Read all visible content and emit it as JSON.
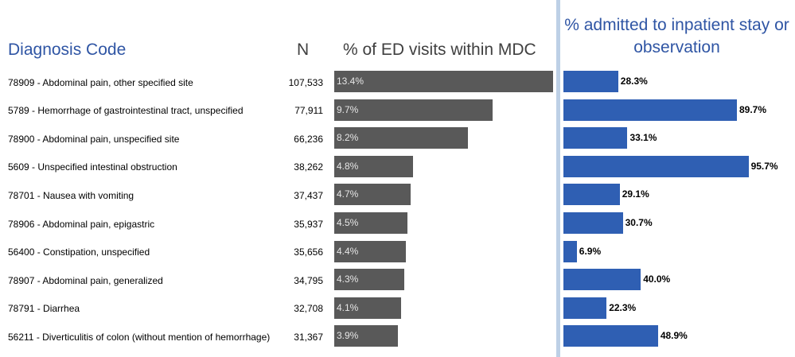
{
  "headers": {
    "code": "Diagnosis Code",
    "n": "N",
    "pct_visits": "% of ED visits within MDC",
    "pct_admitted": "% admitted to inpatient stay or observation"
  },
  "colors": {
    "header_blue": "#2f55a4",
    "visits_bar": "#595959",
    "admit_bar": "#2f5fb3",
    "divider": "#bdd0e6"
  },
  "chart_data": {
    "type": "bar",
    "orientation": "horizontal",
    "categories": [
      "78909 - Abdominal pain, other specified site",
      "5789 - Hemorrhage of gastrointestinal tract, unspecified",
      "78900 - Abdominal pain, unspecified site",
      "5609 - Unspecified intestinal obstruction",
      "78701 - Nausea with vomiting",
      "78906 - Abdominal pain, epigastric",
      "56400 - Constipation, unspecified",
      "78907 - Abdominal pain, generalized",
      "78791 - Diarrhea",
      "56211 - Diverticulitis of colon (without mention of hemorrhage)"
    ],
    "n": [
      "107,533",
      "77,911",
      "66,236",
      "38,262",
      "37,437",
      "35,937",
      "35,656",
      "34,795",
      "32,708",
      "31,367"
    ],
    "series": [
      {
        "name": "% of ED visits within MDC",
        "values": [
          13.4,
          9.7,
          8.2,
          4.8,
          4.7,
          4.5,
          4.4,
          4.3,
          4.1,
          3.9
        ],
        "labels": [
          "13.4%",
          "9.7%",
          "8.2%",
          "4.8%",
          "4.7%",
          "4.5%",
          "4.4%",
          "4.3%",
          "4.1%",
          "3.9%"
        ]
      },
      {
        "name": "% admitted to inpatient stay or observation",
        "values": [
          28.3,
          89.7,
          33.1,
          95.7,
          29.1,
          30.7,
          6.9,
          40.0,
          22.3,
          48.9
        ],
        "labels": [
          "28.3%",
          "89.7%",
          "33.1%",
          "95.7%",
          "29.1%",
          "30.7%",
          "6.9%",
          "40.0%",
          "22.3%",
          "48.9%"
        ]
      }
    ],
    "grid": false,
    "legend": "none"
  }
}
